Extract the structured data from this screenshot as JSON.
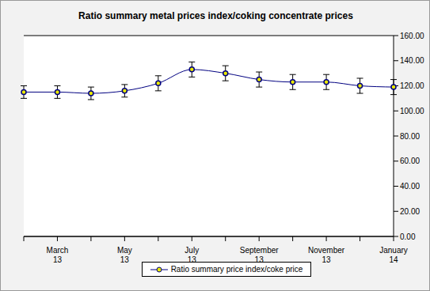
{
  "chart_data": {
    "type": "line",
    "title": "Ratio summary metal prices index/coking concentrate prices",
    "categories": [
      null,
      "March 13",
      null,
      "May 13",
      null,
      "July 13",
      null,
      "September 13",
      null,
      "November 13",
      null,
      "January 14"
    ],
    "series": [
      {
        "name": "Ratio summary price index/coke price",
        "color": "#000080",
        "marker": "circle",
        "values": [
          115,
          115,
          114,
          116,
          122,
          133,
          130,
          125,
          123,
          123,
          120,
          119
        ],
        "errors": [
          5,
          5,
          5,
          5,
          6,
          6,
          6,
          6,
          6,
          6,
          6,
          6
        ]
      }
    ],
    "ylim": [
      0,
      160
    ],
    "yticks": [
      {
        "value": 0,
        "label": "0.00"
      },
      {
        "value": 20,
        "label": "20.00"
      },
      {
        "value": 40,
        "label": "40.00"
      },
      {
        "value": 60,
        "label": "60.00"
      },
      {
        "value": 80,
        "label": "80.00"
      },
      {
        "value": 100,
        "label": "100.00"
      },
      {
        "value": 120,
        "label": "120.00"
      },
      {
        "value": 140,
        "label": "140.00"
      },
      {
        "value": 160,
        "label": "160.00"
      }
    ],
    "grid": true,
    "legend": "bottom"
  }
}
